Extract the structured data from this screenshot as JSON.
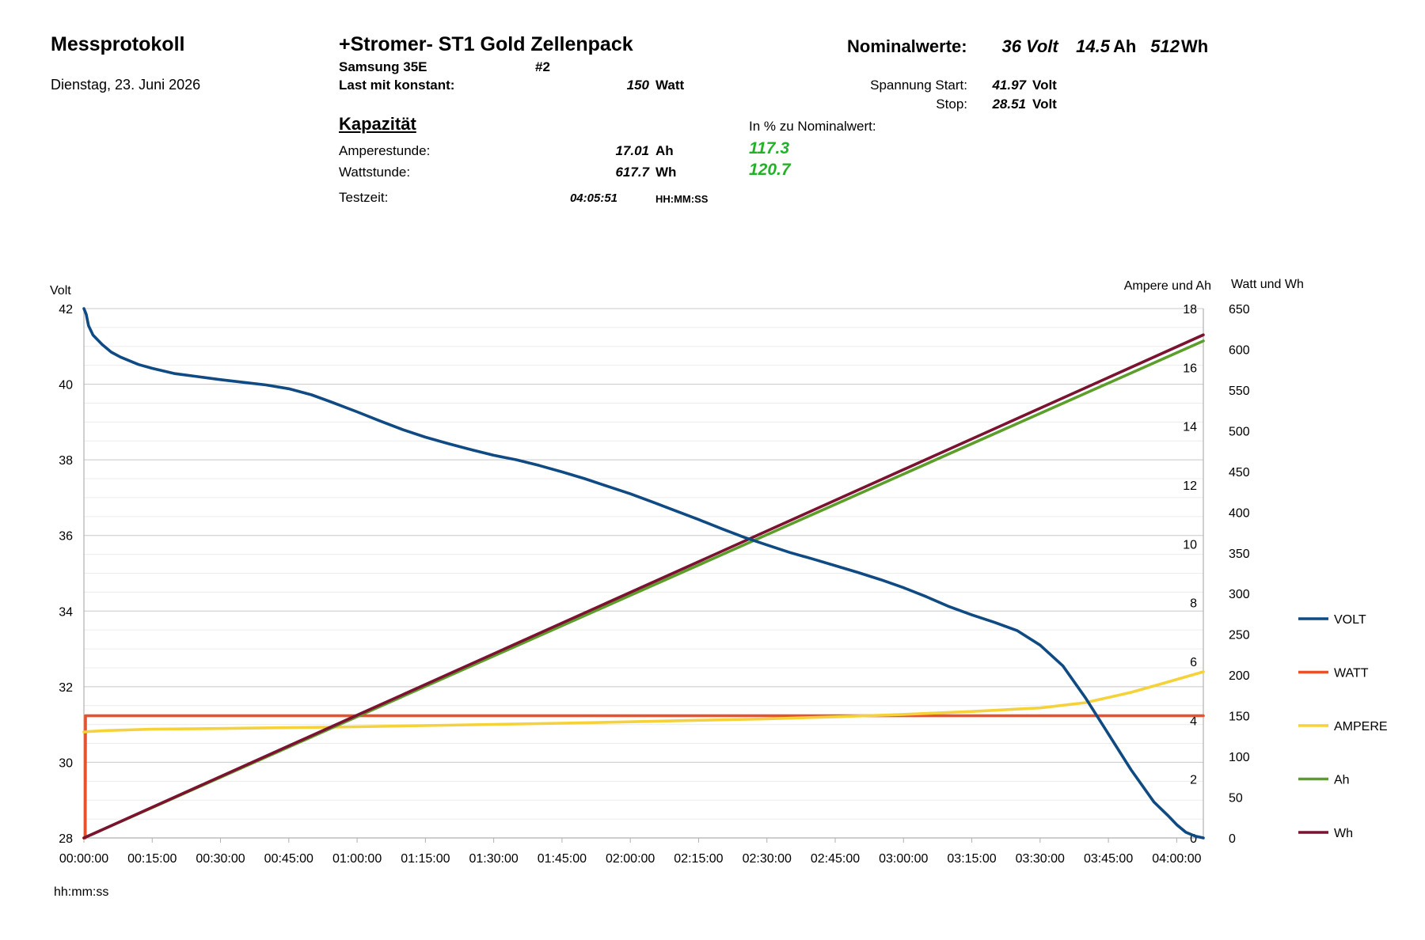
{
  "header": {
    "title": "Messprotokoll",
    "date": "Dienstag, 23. Juni 2026",
    "pack_title": "+Stromer- ST1 Gold Zellenpack",
    "cell": "Samsung 35E",
    "number": "#2",
    "load_label": "Last mit konstant:",
    "load_value": "150",
    "load_unit": "Watt",
    "nominal_label": "Nominalwerte:",
    "nominal_volt": "36",
    "nominal_volt_unit": "Volt",
    "nominal_ah": "14.5",
    "nominal_ah_unit": "Ah",
    "nominal_wh": "512",
    "nominal_wh_unit": "Wh",
    "start_label": "Spannung Start:",
    "start_value": "41.97",
    "start_unit": "Volt",
    "stop_label": "Stop:",
    "stop_value": "28.51",
    "stop_unit": "Volt"
  },
  "capacity": {
    "title": "Kapazität",
    "percent_label": "In % zu Nominalwert:",
    "ah_label": "Amperestunde:",
    "ah_value": "17.01",
    "ah_unit": "Ah",
    "ah_percent": "117.3",
    "wh_label": "Wattstunde:",
    "wh_value": "617.7",
    "wh_unit": "Wh",
    "wh_percent": "120.7",
    "time_label": "Testzeit:",
    "time_value": "04:05:51",
    "time_unit": "HH:MM:SS"
  },
  "chart_data": {
    "type": "line",
    "xlabel": "hh:mm:ss",
    "x_ticks": [
      "00:00:00",
      "00:15:00",
      "00:30:00",
      "00:45:00",
      "01:00:00",
      "01:15:00",
      "01:30:00",
      "01:45:00",
      "02:00:00",
      "02:15:00",
      "02:30:00",
      "02:45:00",
      "03:00:00",
      "03:15:00",
      "03:30:00",
      "03:45:00",
      "04:00:00"
    ],
    "x_unit": "minutes",
    "xlim": [
      0,
      245.85
    ],
    "grid": true,
    "legend_position": "right",
    "axes": {
      "volt": {
        "label": "Volt",
        "ylim": [
          28,
          42
        ],
        "ticks": [
          28,
          30,
          32,
          34,
          36,
          38,
          40,
          42
        ]
      },
      "ampere": {
        "label": "Ampere und Ah",
        "ylim": [
          0,
          18
        ],
        "ticks": [
          0,
          2,
          4,
          6,
          8,
          10,
          12,
          14,
          16,
          18
        ]
      },
      "watt": {
        "label": "Watt und Wh",
        "ylim": [
          0,
          650
        ],
        "ticks": [
          0,
          50,
          100,
          150,
          200,
          250,
          300,
          350,
          400,
          450,
          500,
          550,
          600,
          650
        ]
      }
    },
    "series": [
      {
        "name": "VOLT",
        "axis": "volt",
        "color": "#0f4a82",
        "x": [
          0,
          0.5,
          1,
          2,
          4,
          6,
          8,
          12,
          15,
          20,
          25,
          30,
          35,
          40,
          45,
          50,
          55,
          60,
          65,
          70,
          75,
          80,
          85,
          90,
          95,
          100,
          105,
          110,
          115,
          120,
          125,
          130,
          135,
          140,
          145,
          150,
          155,
          160,
          165,
          170,
          175,
          180,
          185,
          190,
          195,
          200,
          205,
          210,
          215,
          220,
          225,
          230,
          235,
          238,
          240,
          242,
          244,
          245.85
        ],
        "y": [
          42,
          41.85,
          41.55,
          41.3,
          41.05,
          40.85,
          40.72,
          40.52,
          40.42,
          40.28,
          40.2,
          40.12,
          40.05,
          39.98,
          39.88,
          39.72,
          39.5,
          39.27,
          39.03,
          38.8,
          38.6,
          38.43,
          38.27,
          38.12,
          38.0,
          37.85,
          37.68,
          37.5,
          37.3,
          37.1,
          36.88,
          36.65,
          36.42,
          36.18,
          35.95,
          35.75,
          35.55,
          35.38,
          35.2,
          35.02,
          34.83,
          34.62,
          34.38,
          34.12,
          33.9,
          33.7,
          33.48,
          33.1,
          32.55,
          31.7,
          30.75,
          29.8,
          28.95,
          28.6,
          28.35,
          28.15,
          28.05,
          28.0
        ]
      },
      {
        "name": "WATT",
        "axis": "watt",
        "color": "#e8512a",
        "x": [
          0,
          0.3,
          0.35,
          245.85
        ],
        "y": [
          0,
          0,
          150,
          150
        ]
      },
      {
        "name": "AMPERE",
        "axis": "ampere",
        "color": "#f5d23a",
        "x": [
          0,
          1,
          5,
          15,
          30,
          45,
          60,
          75,
          90,
          105,
          120,
          135,
          150,
          165,
          180,
          195,
          210,
          220,
          230,
          238,
          245.85
        ],
        "y": [
          3.6,
          3.62,
          3.65,
          3.7,
          3.72,
          3.75,
          3.78,
          3.82,
          3.86,
          3.9,
          3.95,
          4.0,
          4.05,
          4.12,
          4.2,
          4.3,
          4.42,
          4.6,
          4.95,
          5.3,
          5.65
        ]
      },
      {
        "name": "Ah",
        "axis": "ampere",
        "color": "#5c9e2a",
        "x": [
          0,
          245.85
        ],
        "y": [
          0,
          16.9
        ]
      },
      {
        "name": "Wh",
        "axis": "watt",
        "color": "#7a1230",
        "x": [
          0,
          245.85
        ],
        "y": [
          0,
          617.7
        ]
      }
    ]
  }
}
